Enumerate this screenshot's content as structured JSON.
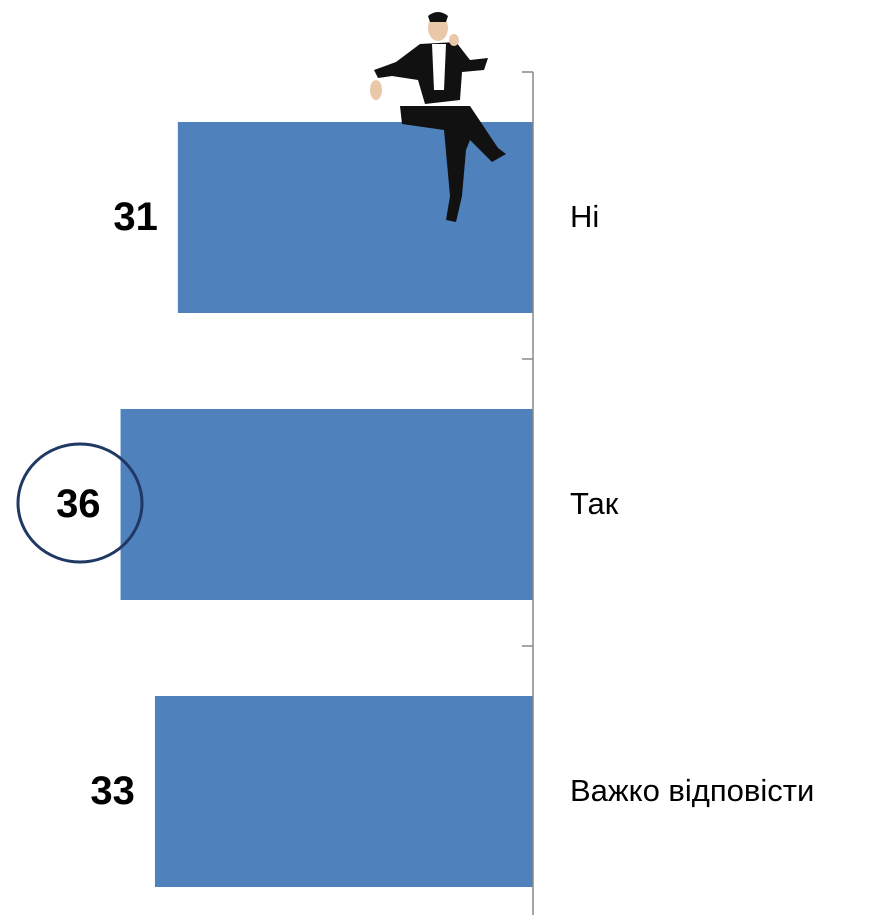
{
  "chart_data": {
    "type": "hbar",
    "categories": [
      "Ні",
      "Так",
      "Важко відповісти"
    ],
    "values": [
      31,
      36,
      33
    ],
    "color": "#4f81bd",
    "xlim": [
      0,
      46
    ]
  }
}
